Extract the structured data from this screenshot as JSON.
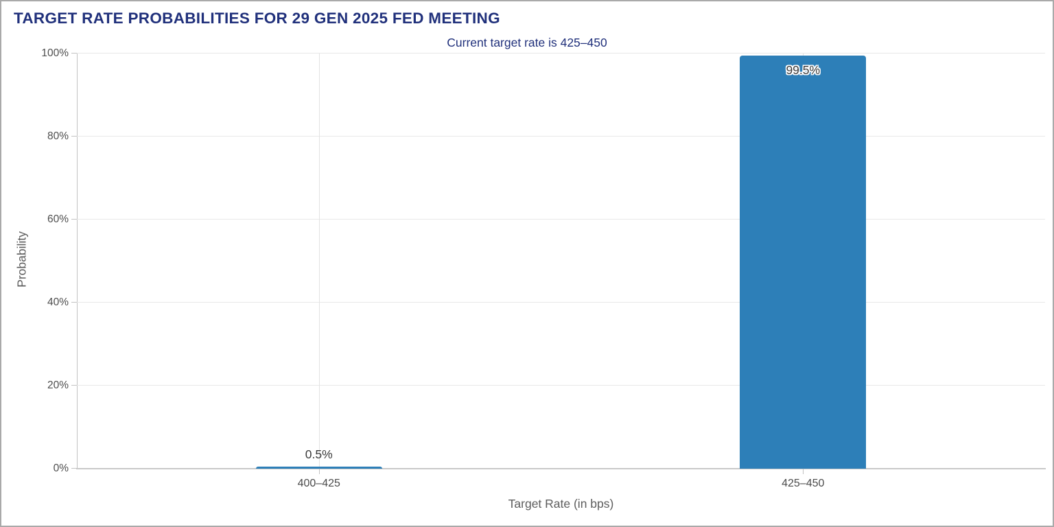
{
  "panel": {
    "background": "#ffffff",
    "border_color": "#a9a9a9"
  },
  "chart_data": {
    "type": "bar",
    "title": "TARGET RATE PROBABILITIES FOR 29 GEN 2025 FED MEETING",
    "subtitle": "Current target rate is 425–450",
    "xlabel": "Target Rate (in bps)",
    "ylabel": "Probability",
    "categories": [
      "400–425",
      "425–450"
    ],
    "values": [
      0.5,
      99.5
    ],
    "value_labels": [
      "0.5%",
      "99.5%"
    ],
    "ylim": [
      0,
      100
    ],
    "y_ticks": [
      0,
      20,
      40,
      60,
      80,
      100
    ],
    "y_tick_labels": [
      "0%",
      "20%",
      "40%",
      "60%",
      "80%",
      "100%"
    ],
    "grid": "horizontal lines at each y tick; one vertical line per category; no legend",
    "legend_position": "none",
    "bar_color": "#2d7fb8",
    "title_color": "#20307b",
    "value_label_color": "#3a3a3a",
    "axis_text_color": "#4d4d4d"
  }
}
